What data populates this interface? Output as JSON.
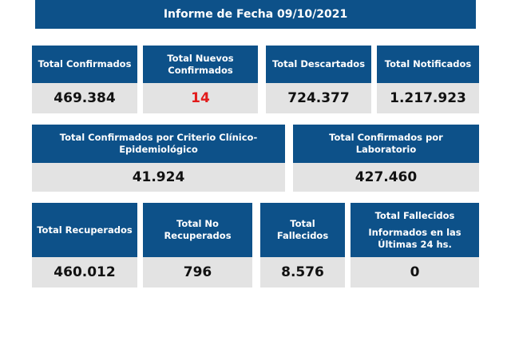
{
  "title": "Informe de Fecha 09/10/2021",
  "colors": {
    "header_blue": "#0d5189",
    "value_bg": "#e3e3e3",
    "highlight_red": "#e21b1b"
  },
  "cards": [
    {
      "label": "Total Confirmados",
      "value": "469.384"
    },
    {
      "label": "Total Nuevos Confirmados",
      "value": "14"
    },
    {
      "label": "Total Descartados",
      "value": "724.377"
    },
    {
      "label": "Total Notificados",
      "value": "1.217.923"
    },
    {
      "label": "Total Confirmados por Criterio Clínico-Epidemiológico",
      "value": "41.924"
    },
    {
      "label": "Total Confirmados por Laboratorio",
      "value": "427.460"
    },
    {
      "label": "Total Recuperados",
      "value": "460.012"
    },
    {
      "label": "Total No Recuperados",
      "value": "796"
    },
    {
      "label": "Total Fallecidos",
      "value": "8.576"
    },
    {
      "label": "Total Fallecidos",
      "sublabel": "Informados en las Últimas 24 hs.",
      "value": "0"
    }
  ]
}
